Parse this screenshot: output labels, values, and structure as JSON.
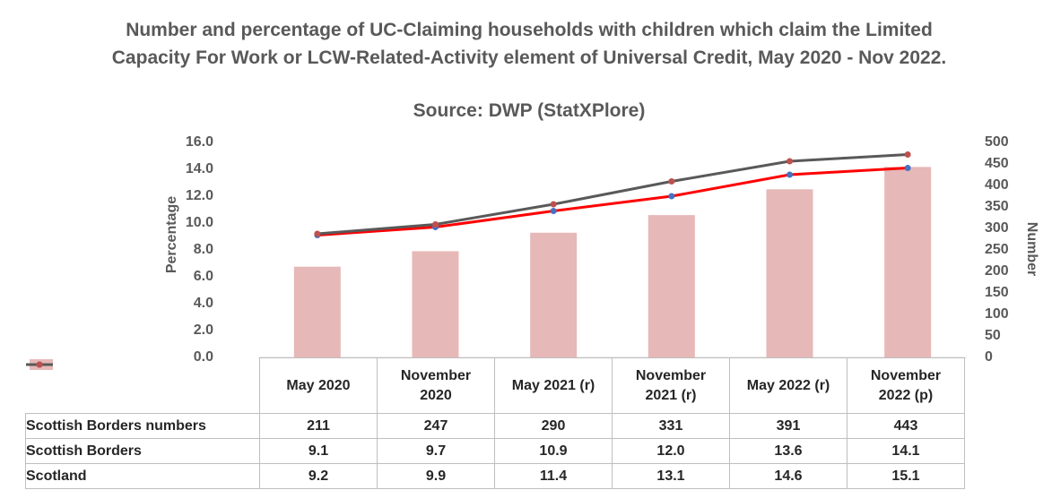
{
  "chart_data": {
    "type": "bar",
    "title": "Number and percentage of UC-Claiming households with children which claim the Limited Capacity For Work or LCW-Related-Activity element of Universal Credit, May 2020 - Nov 2022.",
    "subtitle": "Source: DWP (StatXPlore)",
    "y_label": "Percentage",
    "y2_label": "Number",
    "categories": [
      "May 2020",
      "November 2020",
      "May 2021 (r)",
      "November 2021 (r)",
      "May 2022 (r)",
      "November 2022 (p)"
    ],
    "series": [
      {
        "name": "Scottish Borders numbers",
        "type": "bar",
        "axis": "y2",
        "color": "#e6b8b7",
        "values": [
          211,
          247,
          290,
          331,
          391,
          443
        ]
      },
      {
        "name": "Scottish Borders",
        "type": "line",
        "color": "#ff0000",
        "marker_color": "#4472c4",
        "values": [
          9.1,
          9.7,
          10.9,
          12.0,
          13.6,
          14.1
        ],
        "value_labels": [
          "9.1",
          "9.7",
          "10.9",
          "12.0",
          "13.6",
          "14.1"
        ]
      },
      {
        "name": "Scotland",
        "type": "line",
        "color": "#595959",
        "marker_color": "#c0504d",
        "values": [
          9.2,
          9.9,
          11.4,
          13.1,
          14.6,
          15.1
        ],
        "value_labels": [
          "9.2",
          "9.9",
          "11.4",
          "13.1",
          "14.6",
          "15.1"
        ]
      }
    ],
    "ylim": [
      0,
      16
    ],
    "yticks": [
      {
        "value": 0,
        "label": "0.0"
      },
      {
        "value": 2,
        "label": "2.0"
      },
      {
        "value": 4,
        "label": "4.0"
      },
      {
        "value": 6,
        "label": "6.0"
      },
      {
        "value": 8,
        "label": "8.0"
      },
      {
        "value": 10,
        "label": "10.0"
      },
      {
        "value": 12,
        "label": "12.0"
      },
      {
        "value": 14,
        "label": "14.0"
      },
      {
        "value": 16,
        "label": "16.0"
      }
    ],
    "y2lim": [
      0,
      500
    ],
    "y2ticks": [
      0,
      50,
      100,
      150,
      200,
      250,
      300,
      350,
      400,
      450,
      500
    ],
    "grid": false
  }
}
